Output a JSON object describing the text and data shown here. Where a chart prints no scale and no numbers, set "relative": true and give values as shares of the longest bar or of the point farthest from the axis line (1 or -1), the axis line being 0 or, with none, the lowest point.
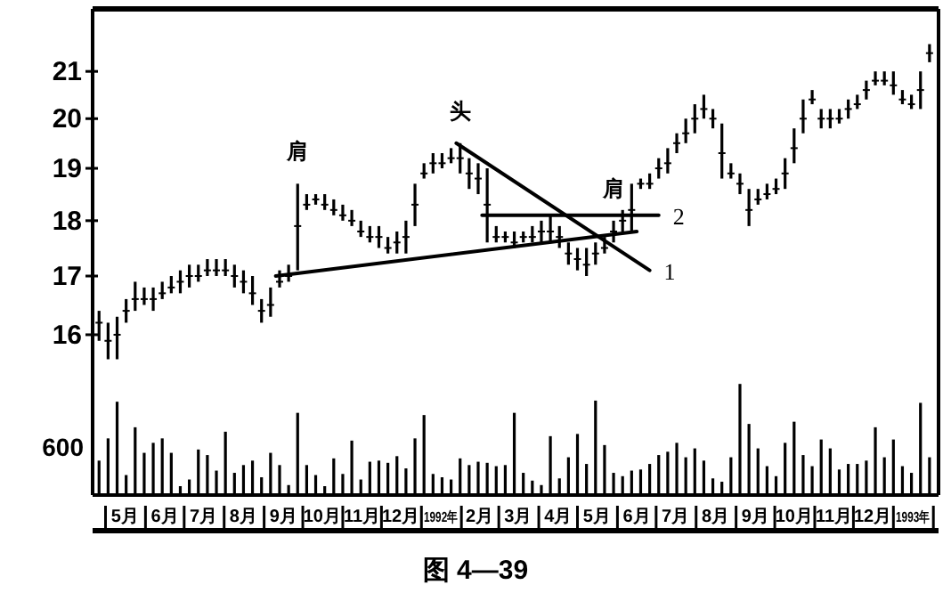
{
  "chart_data": [
    {
      "type": "candlestick",
      "log": true,
      "xlim": [
        "1991-04-21",
        "1993-02-05"
      ],
      "ylim": [
        15.65,
        22.4
      ],
      "yticks": [
        16,
        17,
        18,
        19,
        20,
        21
      ],
      "tick_labels": "y",
      "grid": false,
      "color": "#000000",
      "x": [
        "1991-04-26",
        "1991-05-03",
        "1991-05-10",
        "1991-05-17",
        "1991-05-24",
        "1991-05-31",
        "1991-06-07",
        "1991-06-14",
        "1991-06-21",
        "1991-06-28",
        "1991-07-05",
        "1991-07-12",
        "1991-07-19",
        "1991-07-26",
        "1991-08-02",
        "1991-08-09",
        "1991-08-16",
        "1991-08-23",
        "1991-08-30",
        "1991-09-06",
        "1991-09-13",
        "1991-09-20",
        "1991-09-27",
        "1991-10-04",
        "1991-10-11",
        "1991-10-18",
        "1991-10-25",
        "1991-11-01",
        "1991-11-08",
        "1991-11-15",
        "1991-11-22",
        "1991-11-29",
        "1991-12-06",
        "1991-12-13",
        "1991-12-20",
        "1991-12-27",
        "1992-01-03",
        "1992-01-10",
        "1992-01-17",
        "1992-01-24",
        "1992-01-31",
        "1992-02-07",
        "1992-02-14",
        "1992-02-21",
        "1992-02-28",
        "1992-03-06",
        "1992-03-13",
        "1992-03-20",
        "1992-03-27",
        "1992-04-03",
        "1992-04-10",
        "1992-04-17",
        "1992-04-24",
        "1992-05-01",
        "1992-05-08",
        "1992-05-15",
        "1992-05-22",
        "1992-05-29",
        "1992-06-05",
        "1992-06-12",
        "1992-06-19",
        "1992-06-26",
        "1992-07-03",
        "1992-07-10",
        "1992-07-17",
        "1992-07-24",
        "1992-07-31",
        "1992-08-07",
        "1992-08-14",
        "1992-08-21",
        "1992-08-28",
        "1992-09-04",
        "1992-09-11",
        "1992-09-18",
        "1992-09-25",
        "1992-10-02",
        "1992-10-09",
        "1992-10-16",
        "1992-10-23",
        "1992-10-30",
        "1992-11-06",
        "1992-11-13",
        "1992-11-20",
        "1992-11-27",
        "1992-12-04",
        "1992-12-11",
        "1992-12-18",
        "1992-12-25",
        "1993-01-01",
        "1993-01-08",
        "1993-01-15",
        "1993-01-22",
        "1993-01-29"
      ],
      "ohlc": [
        [
          16.2,
          16.4,
          15.9,
          16.2
        ],
        [
          15.9,
          16.2,
          15.6,
          15.9
        ],
        [
          16.0,
          16.3,
          15.6,
          16.0
        ],
        [
          16.4,
          16.6,
          16.2,
          16.4
        ],
        [
          16.6,
          16.9,
          16.4,
          16.6
        ],
        [
          16.6,
          16.8,
          16.5,
          16.6
        ],
        [
          16.6,
          16.8,
          16.4,
          16.6
        ],
        [
          16.7,
          16.9,
          16.6,
          16.7
        ],
        [
          16.8,
          17.0,
          16.7,
          16.8
        ],
        [
          16.9,
          17.1,
          16.7,
          16.9
        ],
        [
          17.0,
          17.2,
          16.8,
          17.0
        ],
        [
          17.0,
          17.2,
          16.9,
          17.0
        ],
        [
          17.1,
          17.3,
          17.0,
          17.1
        ],
        [
          17.1,
          17.3,
          17.0,
          17.1
        ],
        [
          17.1,
          17.3,
          17.0,
          17.1
        ],
        [
          17.0,
          17.2,
          16.8,
          17.0
        ],
        [
          16.9,
          17.1,
          16.7,
          16.9
        ],
        [
          16.7,
          17.0,
          16.5,
          16.7
        ],
        [
          16.4,
          16.6,
          16.2,
          16.4
        ],
        [
          16.5,
          16.8,
          16.3,
          16.5
        ],
        [
          16.9,
          17.1,
          16.8,
          16.9
        ],
        [
          17.0,
          17.2,
          16.9,
          17.0
        ],
        [
          17.9,
          18.7,
          17.1,
          17.9
        ],
        [
          18.3,
          18.5,
          18.2,
          18.3
        ],
        [
          18.4,
          18.5,
          18.3,
          18.4
        ],
        [
          18.3,
          18.5,
          18.2,
          18.3
        ],
        [
          18.2,
          18.4,
          18.1,
          18.2
        ],
        [
          18.1,
          18.3,
          18.0,
          18.1
        ],
        [
          18.0,
          18.2,
          17.9,
          18.0
        ],
        [
          17.8,
          18.0,
          17.7,
          17.8
        ],
        [
          17.7,
          17.9,
          17.6,
          17.7
        ],
        [
          17.7,
          17.9,
          17.5,
          17.7
        ],
        [
          17.5,
          17.7,
          17.4,
          17.5
        ],
        [
          17.6,
          17.8,
          17.4,
          17.6
        ],
        [
          17.7,
          18.0,
          17.4,
          17.7
        ],
        [
          18.3,
          18.7,
          17.9,
          18.3
        ],
        [
          18.9,
          19.1,
          18.8,
          18.9
        ],
        [
          19.1,
          19.3,
          18.9,
          19.1
        ],
        [
          19.1,
          19.3,
          19.0,
          19.1
        ],
        [
          19.2,
          19.4,
          19.1,
          19.2
        ],
        [
          19.2,
          19.5,
          18.9,
          19.2
        ],
        [
          18.9,
          19.2,
          18.6,
          18.9
        ],
        [
          18.8,
          19.1,
          18.5,
          18.8
        ],
        [
          18.3,
          19.0,
          17.6,
          18.3
        ],
        [
          17.7,
          17.9,
          17.6,
          17.7
        ],
        [
          17.7,
          17.8,
          17.6,
          17.7
        ],
        [
          17.6,
          17.8,
          17.5,
          17.6
        ],
        [
          17.7,
          17.8,
          17.6,
          17.7
        ],
        [
          17.7,
          17.9,
          17.6,
          17.7
        ],
        [
          17.8,
          18.0,
          17.6,
          17.8
        ],
        [
          17.8,
          18.1,
          17.6,
          17.8
        ],
        [
          17.7,
          17.9,
          17.5,
          17.7
        ],
        [
          17.4,
          17.6,
          17.2,
          17.4
        ],
        [
          17.3,
          17.5,
          17.1,
          17.3
        ],
        [
          17.2,
          17.5,
          17.0,
          17.2
        ],
        [
          17.4,
          17.6,
          17.2,
          17.4
        ],
        [
          17.5,
          17.7,
          17.4,
          17.5
        ],
        [
          17.8,
          18.0,
          17.6,
          17.8
        ],
        [
          18.0,
          18.2,
          17.8,
          18.0
        ],
        [
          18.2,
          18.7,
          17.8,
          18.2
        ],
        [
          18.7,
          18.8,
          18.6,
          18.7
        ],
        [
          18.7,
          18.9,
          18.6,
          18.7
        ],
        [
          19.0,
          19.2,
          18.8,
          19.0
        ],
        [
          19.1,
          19.4,
          18.9,
          19.1
        ],
        [
          19.5,
          19.7,
          19.3,
          19.5
        ],
        [
          19.7,
          20.0,
          19.5,
          19.7
        ],
        [
          20.0,
          20.3,
          19.7,
          20.0
        ],
        [
          20.2,
          20.5,
          20.0,
          20.2
        ],
        [
          20.0,
          20.2,
          19.8,
          20.0
        ],
        [
          19.3,
          19.9,
          18.8,
          19.3
        ],
        [
          18.9,
          19.1,
          18.8,
          18.9
        ],
        [
          18.7,
          18.9,
          18.5,
          18.7
        ],
        [
          18.2,
          18.6,
          17.9,
          18.2
        ],
        [
          18.4,
          18.6,
          18.3,
          18.4
        ],
        [
          18.5,
          18.7,
          18.4,
          18.5
        ],
        [
          18.6,
          18.8,
          18.5,
          18.6
        ],
        [
          18.9,
          19.2,
          18.6,
          18.9
        ],
        [
          19.4,
          19.8,
          19.1,
          19.4
        ],
        [
          20.0,
          20.4,
          19.7,
          20.0
        ],
        [
          20.4,
          20.6,
          20.3,
          20.4
        ],
        [
          20.0,
          20.2,
          19.8,
          20.0
        ],
        [
          20.0,
          20.2,
          19.8,
          20.0
        ],
        [
          20.0,
          20.2,
          19.9,
          20.0
        ],
        [
          20.2,
          20.4,
          20.0,
          20.2
        ],
        [
          20.3,
          20.5,
          20.2,
          20.3
        ],
        [
          20.6,
          20.8,
          20.4,
          20.6
        ],
        [
          20.8,
          21.0,
          20.7,
          20.8
        ],
        [
          20.8,
          21.0,
          20.7,
          20.8
        ],
        [
          20.7,
          21.0,
          20.5,
          20.7
        ],
        [
          20.4,
          20.6,
          20.3,
          20.4
        ],
        [
          20.3,
          20.5,
          20.2,
          20.3
        ],
        [
          20.6,
          21.0,
          20.2,
          20.6
        ],
        [
          21.4,
          21.6,
          21.2,
          21.4
        ]
      ],
      "series": [
        {
          "type": "line",
          "color": "#000000",
          "x": [
            "1991-09-10",
            "1992-06-16"
          ],
          "values": [
            17.0,
            17.8
          ]
        },
        {
          "type": "line",
          "name": "1",
          "color": "#000000",
          "x": [
            "1992-01-28",
            "1992-06-26"
          ],
          "values": [
            19.5,
            17.1
          ]
        },
        {
          "type": "line",
          "name": "2",
          "color": "#000000",
          "x": [
            "1992-02-17",
            "1992-07-03"
          ],
          "values": [
            18.1,
            18.1
          ]
        }
      ],
      "annotations": [
        {
          "text": "肩",
          "x": "1991-09-27",
          "y": 18.7
        },
        {
          "text": "头",
          "x": "1992-01-31",
          "y": 19.5
        },
        {
          "text": "肩",
          "x": "1992-05-29",
          "y": 18.0
        }
      ]
    },
    {
      "type": "bar",
      "relative": true,
      "tick_labels": "x",
      "color": "#000000",
      "title": "图 4—39",
      "annotations": [
        "600"
      ],
      "xlim": [
        "1991-04-21",
        "1993-02-05"
      ],
      "xticks": [
        {
          "value": "1991-05-01",
          "label": null
        },
        {
          "value": "1991-05-16",
          "label": "5月"
        },
        {
          "value": "1991-06-01",
          "label": null
        },
        {
          "value": "1991-06-16",
          "label": "6月"
        },
        {
          "value": "1991-07-01",
          "label": null
        },
        {
          "value": "1991-07-16",
          "label": "7月"
        },
        {
          "value": "1991-08-01",
          "label": null
        },
        {
          "value": "1991-08-16",
          "label": "8月"
        },
        {
          "value": "1991-09-01",
          "label": null
        },
        {
          "value": "1991-09-16",
          "label": "9月"
        },
        {
          "value": "1991-10-01",
          "label": null
        },
        {
          "value": "1991-10-16",
          "label": "10月"
        },
        {
          "value": "1991-11-01",
          "label": null
        },
        {
          "value": "1991-11-16",
          "label": "11月"
        },
        {
          "value": "1991-12-01",
          "label": null
        },
        {
          "value": "1991-12-16",
          "label": "12月"
        },
        {
          "value": "1992-01-01",
          "label": null
        },
        {
          "value": "1992-01-16",
          "label": "1992年"
        },
        {
          "value": "1992-02-01",
          "label": null
        },
        {
          "value": "1992-02-15",
          "label": "2月"
        },
        {
          "value": "1992-03-01",
          "label": null
        },
        {
          "value": "1992-03-16",
          "label": "3月"
        },
        {
          "value": "1992-04-01",
          "label": null
        },
        {
          "value": "1992-04-16",
          "label": "4月"
        },
        {
          "value": "1992-05-01",
          "label": null
        },
        {
          "value": "1992-05-16",
          "label": "5月"
        },
        {
          "value": "1992-06-01",
          "label": null
        },
        {
          "value": "1992-06-16",
          "label": "6月"
        },
        {
          "value": "1992-07-01",
          "label": null
        },
        {
          "value": "1992-07-16",
          "label": "7月"
        },
        {
          "value": "1992-08-01",
          "label": null
        },
        {
          "value": "1992-08-16",
          "label": "8月"
        },
        {
          "value": "1992-09-01",
          "label": null
        },
        {
          "value": "1992-09-16",
          "label": "9月"
        },
        {
          "value": "1992-10-01",
          "label": null
        },
        {
          "value": "1992-10-16",
          "label": "10月"
        },
        {
          "value": "1992-11-01",
          "label": null
        },
        {
          "value": "1992-11-16",
          "label": "11月"
        },
        {
          "value": "1992-12-01",
          "label": null
        },
        {
          "value": "1992-12-16",
          "label": "12月"
        },
        {
          "value": "1993-01-01",
          "label": null
        },
        {
          "value": "1993-01-16",
          "label": "1993年"
        },
        {
          "value": "1993-02-01",
          "label": null
        }
      ],
      "x": [
        "1991-04-26",
        "1991-05-03",
        "1991-05-10",
        "1991-05-17",
        "1991-05-24",
        "1991-05-31",
        "1991-06-07",
        "1991-06-14",
        "1991-06-21",
        "1991-06-28",
        "1991-07-05",
        "1991-07-12",
        "1991-07-19",
        "1991-07-26",
        "1991-08-02",
        "1991-08-09",
        "1991-08-16",
        "1991-08-23",
        "1991-08-30",
        "1991-09-06",
        "1991-09-13",
        "1991-09-20",
        "1991-09-27",
        "1991-10-04",
        "1991-10-11",
        "1991-10-18",
        "1991-10-25",
        "1991-11-01",
        "1991-11-08",
        "1991-11-15",
        "1991-11-22",
        "1991-11-29",
        "1991-12-06",
        "1991-12-13",
        "1991-12-20",
        "1991-12-27",
        "1992-01-03",
        "1992-01-10",
        "1992-01-17",
        "1992-01-24",
        "1992-01-31",
        "1992-02-07",
        "1992-02-14",
        "1992-02-21",
        "1992-02-28",
        "1992-03-06",
        "1992-03-13",
        "1992-03-20",
        "1992-03-27",
        "1992-04-03",
        "1992-04-10",
        "1992-04-17",
        "1992-04-24",
        "1992-05-01",
        "1992-05-08",
        "1992-05-15",
        "1992-05-22",
        "1992-05-29",
        "1992-06-05",
        "1992-06-12",
        "1992-06-19",
        "1992-06-26",
        "1992-07-03",
        "1992-07-10",
        "1992-07-17",
        "1992-07-24",
        "1992-07-31",
        "1992-08-07",
        "1992-08-14",
        "1992-08-21",
        "1992-08-28",
        "1992-09-04",
        "1992-09-11",
        "1992-09-18",
        "1992-09-25",
        "1992-10-02",
        "1992-10-09",
        "1992-10-16",
        "1992-10-23",
        "1992-10-30",
        "1992-11-06",
        "1992-11-13",
        "1992-11-20",
        "1992-11-27",
        "1992-12-04",
        "1992-12-11",
        "1992-12-18",
        "1992-12-25",
        "1993-01-01",
        "1993-01-08",
        "1993-01-15",
        "1993-01-22",
        "1993-01-29"
      ],
      "values": [
        0.31,
        0.51,
        0.84,
        0.18,
        0.61,
        0.38,
        0.47,
        0.51,
        0.38,
        0.08,
        0.14,
        0.41,
        0.36,
        0.22,
        0.57,
        0.2,
        0.27,
        0.31,
        0.16,
        0.38,
        0.27,
        0.09,
        0.74,
        0.27,
        0.18,
        0.08,
        0.33,
        0.19,
        0.49,
        0.14,
        0.3,
        0.31,
        0.29,
        0.35,
        0.24,
        0.51,
        0.72,
        0.19,
        0.16,
        0.14,
        0.33,
        0.27,
        0.3,
        0.29,
        0.26,
        0.27,
        0.74,
        0.2,
        0.13,
        0.09,
        0.53,
        0.15,
        0.34,
        0.55,
        0.28,
        0.85,
        0.45,
        0.2,
        0.17,
        0.22,
        0.23,
        0.28,
        0.36,
        0.39,
        0.47,
        0.34,
        0.42,
        0.31,
        0.15,
        0.12,
        0.34,
        1,
        0.64,
        0.42,
        0.26,
        0.17,
        0.47,
        0.66,
        0.36,
        0.26,
        0.5,
        0.42,
        0.23,
        0.28,
        0.28,
        0.31,
        0.61,
        0.34,
        0.5,
        0.26,
        0.2,
        0.83,
        0.34
      ]
    }
  ]
}
